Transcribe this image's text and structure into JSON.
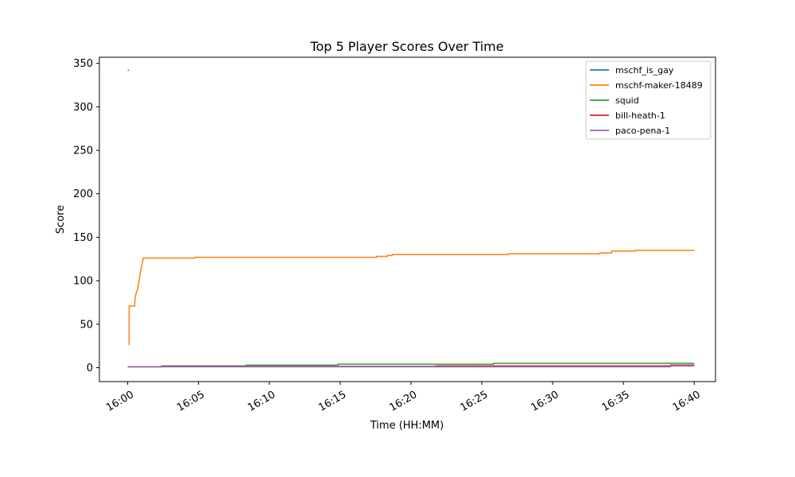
{
  "chart_data": {
    "type": "line",
    "title": "Top 5 Player Scores Over Time",
    "xlabel": "Time (HH:MM)",
    "ylabel": "Score",
    "xlim": [
      "15:58:00",
      "16:41:30"
    ],
    "ylim": [
      -16,
      357
    ],
    "x_ticks": [
      "16:00",
      "16:05",
      "16:10",
      "16:15",
      "16:20",
      "16:25",
      "16:30",
      "16:35",
      "16:40"
    ],
    "y_ticks": [
      0,
      50,
      100,
      150,
      200,
      250,
      300,
      350
    ],
    "grid": false,
    "legend_position": "top-right",
    "series": [
      {
        "name": "mschf_is_gay",
        "color": "#1f77b4",
        "points": [
          [
            "16:00:00",
            342
          ],
          [
            "16:00:06",
            342
          ]
        ]
      },
      {
        "name": "mschf-maker-18489",
        "color": "#ff7f0e",
        "points": [
          [
            "16:00:06",
            26
          ],
          [
            "16:00:06",
            71
          ],
          [
            "16:00:30",
            71
          ],
          [
            "16:00:30",
            78
          ],
          [
            "16:00:36",
            86
          ],
          [
            "16:00:42",
            90
          ],
          [
            "16:00:48",
            100
          ],
          [
            "16:00:54",
            110
          ],
          [
            "16:01:00",
            118
          ],
          [
            "16:01:06",
            126
          ],
          [
            "16:04:45",
            126
          ],
          [
            "16:04:45",
            127
          ],
          [
            "16:17:35",
            127
          ],
          [
            "16:17:35",
            128
          ],
          [
            "16:18:20",
            128
          ],
          [
            "16:18:20",
            129
          ],
          [
            "16:18:40",
            129
          ],
          [
            "16:18:40",
            130
          ],
          [
            "16:26:50",
            130
          ],
          [
            "16:26:50",
            131
          ],
          [
            "16:33:20",
            131
          ],
          [
            "16:33:20",
            132
          ],
          [
            "16:34:10",
            132
          ],
          [
            "16:34:10",
            134
          ],
          [
            "16:35:50",
            134
          ],
          [
            "16:35:50",
            135
          ],
          [
            "16:40:00",
            135
          ]
        ]
      },
      {
        "name": "squid",
        "color": "#2ca02c",
        "points": [
          [
            "16:00:00",
            1
          ],
          [
            "16:02:25",
            1
          ],
          [
            "16:02:25",
            2
          ],
          [
            "16:08:20",
            2
          ],
          [
            "16:08:20",
            3
          ],
          [
            "16:14:50",
            3
          ],
          [
            "16:14:50",
            4
          ],
          [
            "16:25:50",
            4
          ],
          [
            "16:25:50",
            5
          ],
          [
            "16:40:00",
            5
          ]
        ]
      },
      {
        "name": "bill-heath-1",
        "color": "#d62728",
        "points": [
          [
            "16:00:00",
            1
          ],
          [
            "16:02:20",
            1
          ],
          [
            "16:02:20",
            1.5
          ],
          [
            "16:21:45",
            1.5
          ],
          [
            "16:21:45",
            2
          ],
          [
            "16:38:20",
            2
          ],
          [
            "16:38:20",
            3
          ],
          [
            "16:40:00",
            3
          ]
        ]
      },
      {
        "name": "paco-pena-1",
        "color": "#9467bd",
        "points": [
          [
            "16:00:00",
            1
          ],
          [
            "16:38:20",
            1
          ],
          [
            "16:38:20",
            2
          ],
          [
            "16:40:00",
            2
          ]
        ]
      }
    ]
  }
}
